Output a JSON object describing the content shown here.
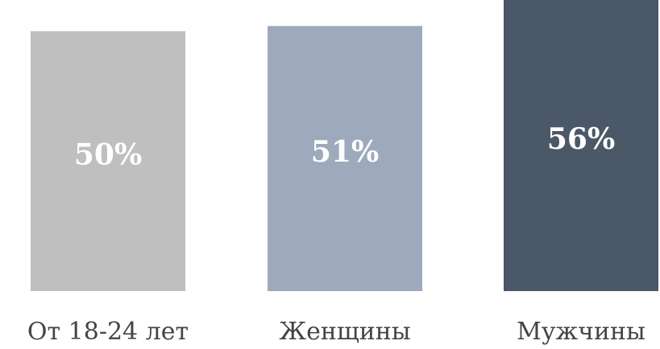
{
  "chart_data": {
    "type": "bar",
    "categories": [
      "От 18-24 лет",
      "Женщины",
      "Мужчины"
    ],
    "values": [
      50,
      51,
      56
    ],
    "value_labels": [
      "50%",
      "51%",
      "56%"
    ],
    "colors": [
      "#bfbfbf",
      "#9eaabb",
      "#4a5868"
    ]
  }
}
